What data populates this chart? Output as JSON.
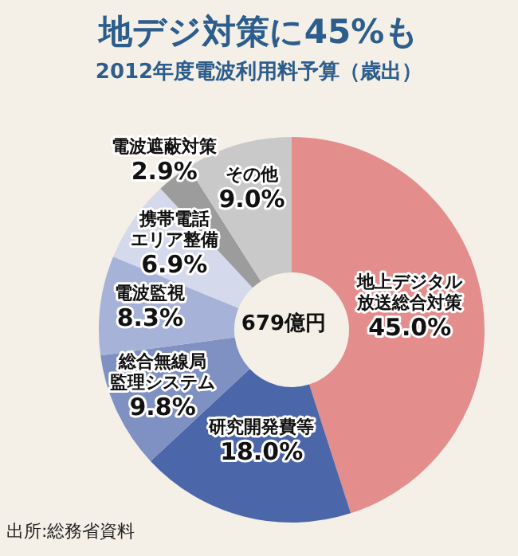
{
  "chart_data": {
    "type": "donut",
    "title": "地デジ対策に45%も",
    "subtitle": "2012年度電波利用料予算（歳出）",
    "categories": [
      "地上デジタル放送総合対策",
      "研究開発費等",
      "総合無線局監理システム",
      "電波監視",
      "携帯電話エリア整備",
      "電波遮蔽対策",
      "その他"
    ],
    "values": [
      45.0,
      18.0,
      9.8,
      8.3,
      6.9,
      2.9,
      9.0
    ],
    "value_labels": [
      "45.0%",
      "18.0%",
      "9.8%",
      "8.3%",
      "6.9%",
      "2.9%",
      "9.0%"
    ],
    "colors": [
      "#e38d8c",
      "#4c67a9",
      "#7f91c3",
      "#a6b2d7",
      "#d4d9eb",
      "#9c9c9c",
      "#c9c9c9"
    ],
    "annotations": [
      "679億円",
      "出所:総務省資料"
    ]
  }
}
